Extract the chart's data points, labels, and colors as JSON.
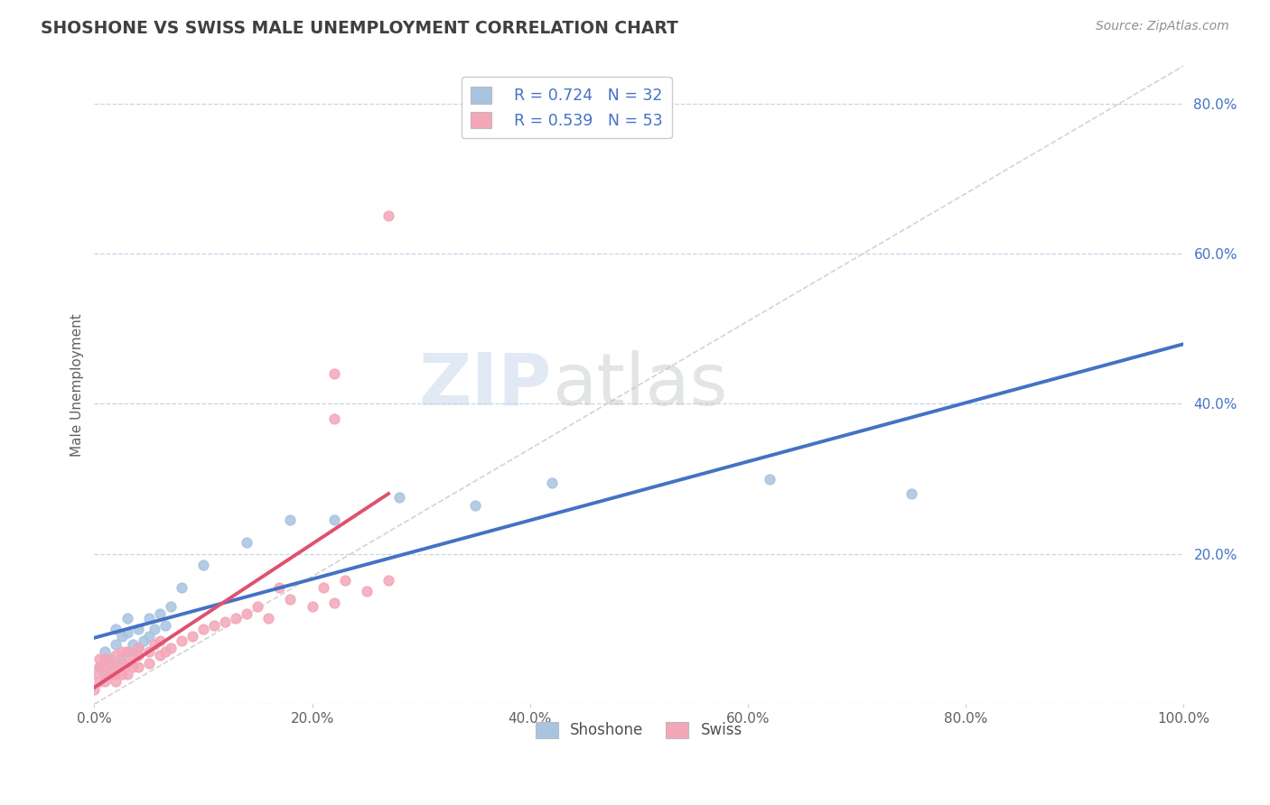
{
  "title": "SHOSHONE VS SWISS MALE UNEMPLOYMENT CORRELATION CHART",
  "source": "Source: ZipAtlas.com",
  "ylabel": "Male Unemployment",
  "xlim": [
    0,
    1.0
  ],
  "ylim": [
    0,
    0.85
  ],
  "xticks": [
    0.0,
    0.2,
    0.4,
    0.6,
    0.8,
    1.0
  ],
  "xtick_labels": [
    "0.0%",
    "20.0%",
    "40.0%",
    "60.0%",
    "80.0%",
    "100.0%"
  ],
  "yticks": [
    0.0,
    0.2,
    0.4,
    0.6,
    0.8
  ],
  "ytick_labels": [
    "",
    "20.0%",
    "40.0%",
    "60.0%",
    "80.0%"
  ],
  "shoshone_color": "#a8c4e0",
  "swiss_color": "#f4a7b9",
  "shoshone_line_color": "#4472c4",
  "swiss_line_color": "#e05070",
  "ref_line_color": "#c8c8c8",
  "legend_r1": "R = 0.724",
  "legend_n1": "N = 32",
  "legend_r2": "R = 0.539",
  "legend_n2": "N = 53",
  "watermark_zip": "ZIP",
  "watermark_atlas": "atlas",
  "bg_color": "#ffffff",
  "grid_color": "#c8d4e8",
  "title_color": "#404040",
  "source_color": "#909090",
  "tick_color_x": "#606060",
  "tick_color_y": "#4472c4",
  "ylabel_color": "#606060",
  "shoshone_x": [
    0.005,
    0.01,
    0.01,
    0.015,
    0.02,
    0.02,
    0.02,
    0.025,
    0.025,
    0.03,
    0.03,
    0.03,
    0.035,
    0.04,
    0.04,
    0.045,
    0.05,
    0.05,
    0.055,
    0.06,
    0.065,
    0.07,
    0.08,
    0.1,
    0.14,
    0.18,
    0.22,
    0.28,
    0.35,
    0.42,
    0.62,
    0.75
  ],
  "shoshone_y": [
    0.05,
    0.04,
    0.07,
    0.06,
    0.055,
    0.08,
    0.1,
    0.065,
    0.09,
    0.07,
    0.095,
    0.115,
    0.08,
    0.075,
    0.1,
    0.085,
    0.09,
    0.115,
    0.1,
    0.12,
    0.105,
    0.13,
    0.155,
    0.185,
    0.215,
    0.245,
    0.245,
    0.275,
    0.265,
    0.295,
    0.3,
    0.28
  ],
  "swiss_x": [
    0.0,
    0.0,
    0.005,
    0.005,
    0.005,
    0.01,
    0.01,
    0.01,
    0.01,
    0.015,
    0.015,
    0.02,
    0.02,
    0.02,
    0.02,
    0.025,
    0.025,
    0.025,
    0.03,
    0.03,
    0.03,
    0.035,
    0.035,
    0.04,
    0.04,
    0.04,
    0.05,
    0.05,
    0.055,
    0.06,
    0.06,
    0.065,
    0.07,
    0.08,
    0.09,
    0.1,
    0.11,
    0.12,
    0.13,
    0.14,
    0.15,
    0.16,
    0.17,
    0.18,
    0.2,
    0.21,
    0.22,
    0.23,
    0.25,
    0.27,
    0.22,
    0.22,
    0.27
  ],
  "swiss_y": [
    0.02,
    0.04,
    0.03,
    0.05,
    0.06,
    0.03,
    0.04,
    0.05,
    0.06,
    0.04,
    0.055,
    0.03,
    0.04,
    0.05,
    0.065,
    0.04,
    0.055,
    0.07,
    0.04,
    0.055,
    0.07,
    0.05,
    0.065,
    0.05,
    0.065,
    0.075,
    0.055,
    0.07,
    0.08,
    0.065,
    0.085,
    0.07,
    0.075,
    0.085,
    0.09,
    0.1,
    0.105,
    0.11,
    0.115,
    0.12,
    0.13,
    0.115,
    0.155,
    0.14,
    0.13,
    0.155,
    0.135,
    0.165,
    0.15,
    0.165,
    0.38,
    0.44,
    0.65
  ]
}
